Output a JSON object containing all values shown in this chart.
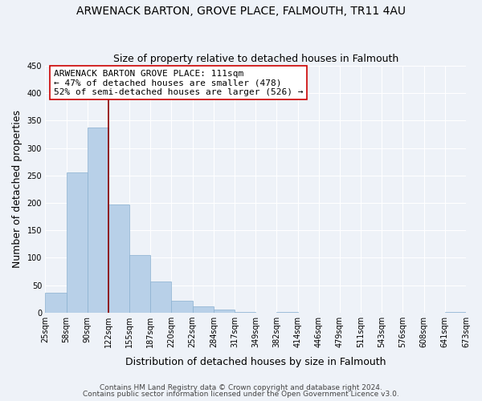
{
  "title": "ARWENACK BARTON, GROVE PLACE, FALMOUTH, TR11 4AU",
  "subtitle": "Size of property relative to detached houses in Falmouth",
  "xlabel": "Distribution of detached houses by size in Falmouth",
  "ylabel": "Number of detached properties",
  "bar_values": [
    36,
    255,
    337,
    197,
    105,
    57,
    21,
    11,
    6,
    1,
    0,
    1,
    0,
    0,
    0,
    0,
    0,
    0,
    0,
    1
  ],
  "bar_labels": [
    "25sqm",
    "58sqm",
    "90sqm",
    "122sqm",
    "155sqm",
    "187sqm",
    "220sqm",
    "252sqm",
    "284sqm",
    "317sqm",
    "349sqm",
    "382sqm",
    "414sqm",
    "446sqm",
    "479sqm",
    "511sqm",
    "543sqm",
    "576sqm",
    "608sqm",
    "641sqm",
    "673sqm"
  ],
  "bar_color": "#b8d0e8",
  "bar_edge_color": "#8ab0d0",
  "ylim": [
    0,
    450
  ],
  "yticks": [
    0,
    50,
    100,
    150,
    200,
    250,
    300,
    350,
    400,
    450
  ],
  "red_line_x": 2.5,
  "annotation_line1": "ARWENACK BARTON GROVE PLACE: 111sqm",
  "annotation_line2": "← 47% of detached houses are smaller (478)",
  "annotation_line3": "52% of semi-detached houses are larger (526) →",
  "footer1": "Contains HM Land Registry data © Crown copyright and database right 2024.",
  "footer2": "Contains public sector information licensed under the Open Government Licence v3.0.",
  "bg_color": "#eef2f8",
  "grid_color": "#ffffff",
  "title_fontsize": 10,
  "subtitle_fontsize": 9,
  "axis_label_fontsize": 9,
  "tick_fontsize": 7,
  "annotation_fontsize": 8,
  "footer_fontsize": 6.5
}
